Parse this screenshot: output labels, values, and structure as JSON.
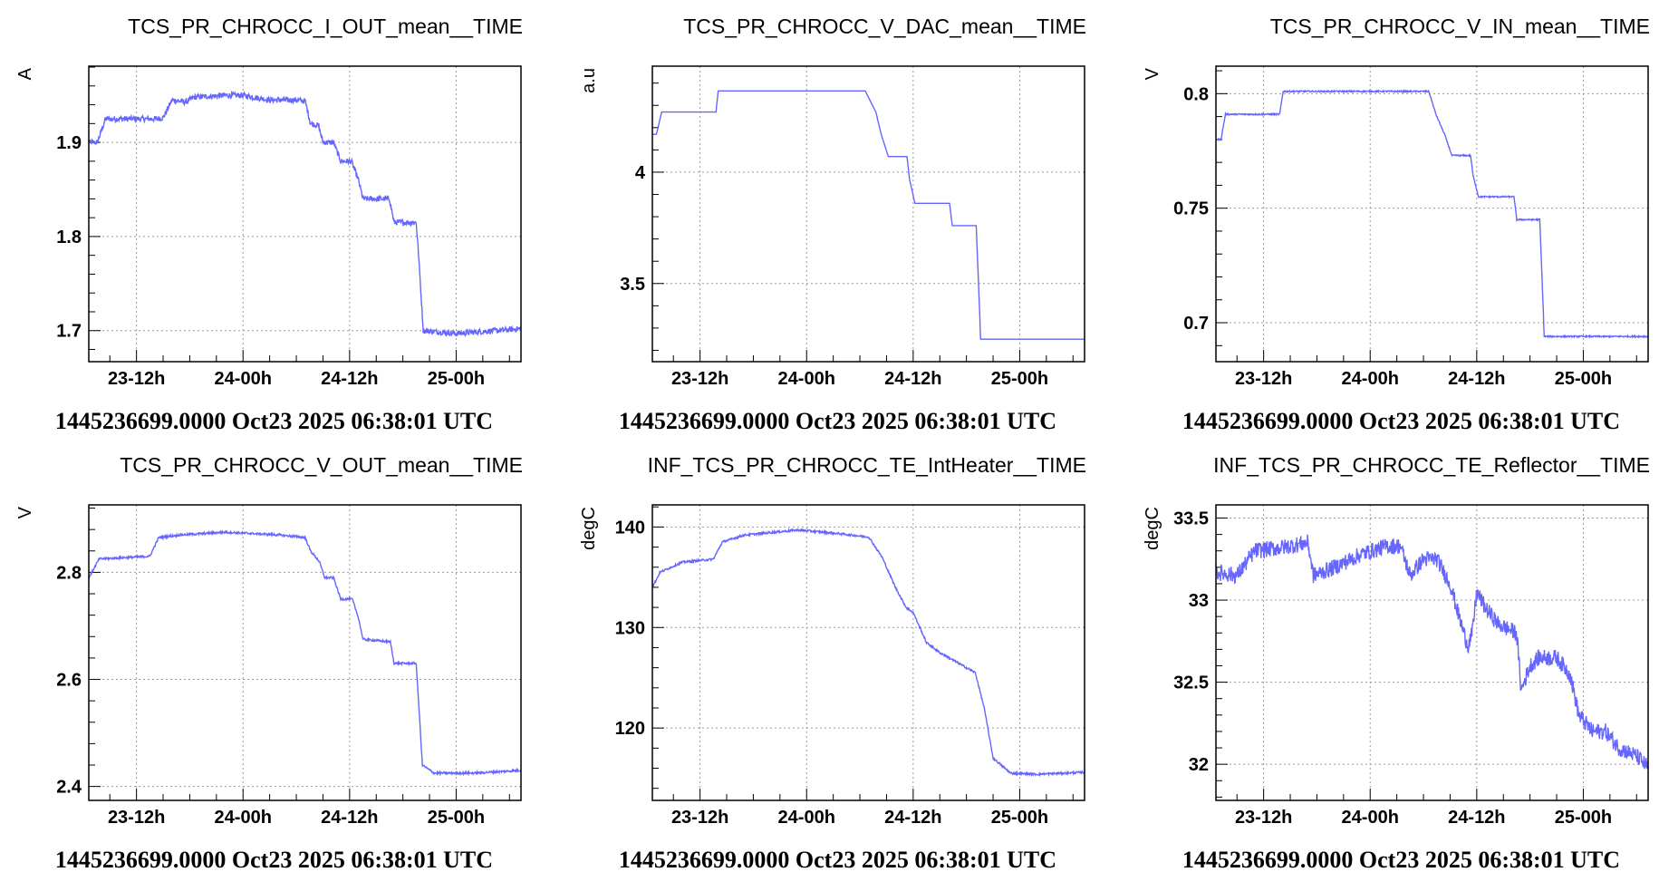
{
  "series_color": "#6666ff",
  "chart_data": [
    {
      "type": "line",
      "title": "TCS_PR_CHROCC_I_OUT_mean__TIME",
      "ylabel": "A",
      "xlabel": "",
      "footer": "1445236699.0000 Oct23 2025 06:38:01 UTC",
      "x_unit": "hours since Oct 23 2025 00:00 UTC",
      "xlim": [
        6.63,
        55.3
      ],
      "ylim": [
        1.667,
        1.981
      ],
      "yticks": [
        1.7,
        1.8,
        1.9
      ],
      "ytick_labels": [
        "1.7",
        "1.8",
        "1.9"
      ],
      "y_minor_step": 0.02,
      "xticks": [
        12,
        24,
        36,
        48
      ],
      "xtick_labels": [
        "23-12h",
        "24-00h",
        "24-12h",
        "25-00h"
      ],
      "x_minor_step": 3,
      "grid": true,
      "noise": 0.003,
      "x": [
        6.63,
        7.6,
        8.5,
        14,
        15,
        16,
        17.5,
        18.5,
        22,
        24,
        27,
        30,
        31,
        31.6,
        32.5,
        33,
        34.2,
        35,
        36.2,
        37,
        37.5,
        40.5,
        41,
        43.5,
        43.7,
        44.3,
        48,
        55.3
      ],
      "y": [
        1.9,
        1.9,
        1.925,
        1.925,
        1.926,
        1.945,
        1.943,
        1.948,
        1.95,
        1.95,
        1.945,
        1.945,
        1.944,
        1.92,
        1.918,
        1.9,
        1.9,
        1.88,
        1.88,
        1.86,
        1.84,
        1.84,
        1.815,
        1.815,
        1.79,
        1.7,
        1.697,
        1.702
      ]
    },
    {
      "type": "line",
      "title": "TCS_PR_CHROCC_V_DAC_mean__TIME",
      "ylabel": "a.u",
      "xlabel": "",
      "footer": "1445236699.0000 Oct23 2025 06:38:01 UTC",
      "x_unit": "hours since Oct 23 2025 00:00 UTC",
      "xlim": [
        6.63,
        55.3
      ],
      "ylim": [
        3.149,
        4.476
      ],
      "yticks": [
        3.5,
        4
      ],
      "ytick_labels": [
        "3.5",
        "4"
      ],
      "y_minor_step": 0.1,
      "xticks": [
        12,
        24,
        36,
        48
      ],
      "xtick_labels": [
        "23-12h",
        "24-00h",
        "24-12h",
        "25-00h"
      ],
      "x_minor_step": 3,
      "grid": true,
      "noise": 0,
      "x": [
        6.63,
        7.08,
        7.68,
        13.8,
        14.04,
        30.6,
        31.8,
        32.4,
        33.2,
        35.3,
        35.6,
        36.2,
        40.1,
        40.4,
        43.1,
        43.6,
        55.3
      ],
      "y": [
        4.17,
        4.17,
        4.27,
        4.27,
        4.365,
        4.365,
        4.27,
        4.17,
        4.07,
        4.07,
        3.966,
        3.86,
        3.86,
        3.76,
        3.76,
        3.25,
        3.25
      ]
    },
    {
      "type": "line",
      "title": "TCS_PR_CHROCC_V_IN_mean__TIME",
      "ylabel": "V",
      "xlabel": "",
      "footer": "1445236699.0000 Oct23 2025 06:38:01 UTC",
      "x_unit": "hours since Oct 23 2025 00:00 UTC",
      "xlim": [
        6.63,
        55.3
      ],
      "ylim": [
        0.683,
        0.812
      ],
      "yticks": [
        0.7,
        0.75,
        0.8
      ],
      "ytick_labels": [
        "0.7",
        "0.75",
        "0.8"
      ],
      "y_minor_step": 0.01,
      "xticks": [
        12,
        24,
        36,
        48
      ],
      "xtick_labels": [
        "23-12h",
        "24-00h",
        "24-12h",
        "25-00h"
      ],
      "x_minor_step": 3,
      "grid": true,
      "noise": 0.0003,
      "x": [
        6.63,
        7.2,
        7.7,
        13.8,
        14.2,
        30.6,
        31.4,
        32.4,
        33.2,
        35.3,
        35.6,
        36.2,
        40.2,
        40.5,
        43.1,
        43.6,
        55.3
      ],
      "y": [
        0.78,
        0.78,
        0.791,
        0.791,
        0.801,
        0.801,
        0.791,
        0.782,
        0.773,
        0.773,
        0.764,
        0.755,
        0.755,
        0.745,
        0.745,
        0.694,
        0.694
      ]
    },
    {
      "type": "line",
      "title": "TCS_PR_CHROCC_V_OUT_mean__TIME",
      "ylabel": "V",
      "xlabel": "",
      "footer": "1445236699.0000 Oct23 2025 06:38:01 UTC",
      "x_unit": "hours since Oct 23 2025 00:00 UTC",
      "xlim": [
        6.63,
        55.3
      ],
      "ylim": [
        2.374,
        2.926
      ],
      "yticks": [
        2.4,
        2.6,
        2.8
      ],
      "ytick_labels": [
        "2.4",
        "2.6",
        "2.8"
      ],
      "y_minor_step": 0.04,
      "xticks": [
        12,
        24,
        36,
        48
      ],
      "xtick_labels": [
        "23-12h",
        "24-00h",
        "24-12h",
        "25-00h"
      ],
      "x_minor_step": 3,
      "grid": true,
      "noise": 0.002,
      "x": [
        6.63,
        7.8,
        13.5,
        14.5,
        17,
        22,
        28,
        31,
        31.6,
        32.6,
        33.2,
        34.2,
        35,
        36.3,
        37,
        37.5,
        40.6,
        41,
        43.5,
        44.2,
        45.5,
        50,
        55.3
      ],
      "y": [
        2.79,
        2.825,
        2.83,
        2.865,
        2.87,
        2.875,
        2.87,
        2.865,
        2.84,
        2.82,
        2.79,
        2.79,
        2.75,
        2.75,
        2.715,
        2.675,
        2.67,
        2.63,
        2.63,
        2.44,
        2.425,
        2.425,
        2.43
      ]
    },
    {
      "type": "line",
      "title": "INF_TCS_PR_CHROCC_TE_IntHeater__TIME",
      "ylabel": "degC",
      "xlabel": "",
      "footer": "1445236699.0000 Oct23 2025 06:38:01 UTC",
      "x_unit": "hours since Oct 23 2025 00:00 UTC",
      "xlim": [
        6.63,
        55.3
      ],
      "ylim": [
        112.8,
        142.2
      ],
      "yticks": [
        120,
        130,
        140
      ],
      "ytick_labels": [
        "120",
        "130",
        "140"
      ],
      "y_minor_step": 2,
      "xticks": [
        12,
        24,
        36,
        48
      ],
      "xtick_labels": [
        "23-12h",
        "24-00h",
        "24-12h",
        "25-00h"
      ],
      "x_minor_step": 3,
      "grid": true,
      "noise": 0.1,
      "x": [
        6.63,
        7.5,
        10,
        13.5,
        14.5,
        17,
        23,
        27,
        31,
        32.5,
        34,
        35.2,
        36,
        37.5,
        39,
        40,
        41,
        43,
        44,
        45,
        47,
        50,
        55.3
      ],
      "y": [
        134,
        135.5,
        136.5,
        136.8,
        138.5,
        139.2,
        139.7,
        139.4,
        139.0,
        137,
        134,
        132,
        131.5,
        128.5,
        127.5,
        127,
        126.5,
        125.5,
        122,
        117,
        115.5,
        115.4,
        115.6
      ]
    },
    {
      "type": "line",
      "title": "INF_TCS_PR_CHROCC_TE_Reflector__TIME",
      "ylabel": "degC",
      "xlabel": "",
      "footer": "1445236699.0000 Oct23 2025 06:38:01 UTC",
      "x_unit": "hours since Oct 23 2025 00:00 UTC",
      "xlim": [
        6.63,
        55.3
      ],
      "ylim": [
        31.78,
        33.58
      ],
      "yticks": [
        32,
        32.5,
        33,
        33.5
      ],
      "ytick_labels": [
        "32",
        "32.5",
        "33",
        "33.5"
      ],
      "y_minor_step": 0.1,
      "xticks": [
        12,
        24,
        36,
        48
      ],
      "xtick_labels": [
        "23-12h",
        "24-00h",
        "24-12h",
        "25-00h"
      ],
      "x_minor_step": 3,
      "grid": true,
      "noise": 0.05,
      "x": [
        6.63,
        9,
        11,
        14,
        17,
        17.6,
        20,
        23,
        26,
        27.4,
        28.5,
        30,
        31.5,
        33,
        34,
        35,
        35.5,
        36,
        37,
        38.5,
        40.5,
        41,
        42,
        43,
        45,
        46.5,
        47.5,
        49,
        50.5,
        52,
        54,
        55.3
      ],
      "y": [
        33.17,
        33.15,
        33.3,
        33.32,
        33.35,
        33.15,
        33.2,
        33.28,
        33.33,
        33.33,
        33.15,
        33.25,
        33.25,
        33.1,
        32.9,
        32.72,
        32.8,
        33.05,
        32.95,
        32.85,
        32.8,
        32.45,
        32.6,
        32.65,
        32.65,
        32.55,
        32.3,
        32.2,
        32.2,
        32.1,
        32.05,
        31.98
      ]
    }
  ]
}
